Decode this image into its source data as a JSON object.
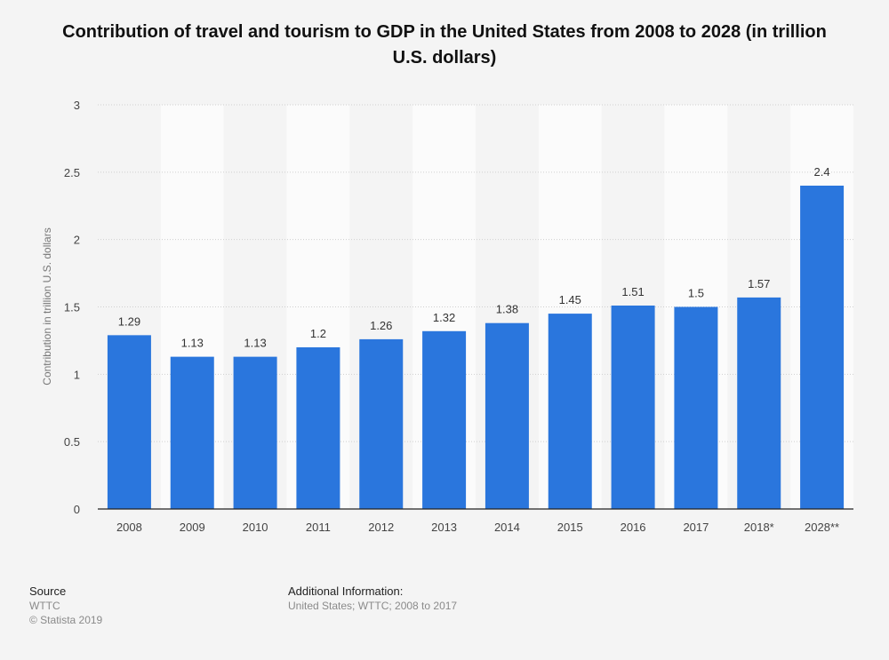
{
  "chart_data": {
    "type": "bar",
    "title": "Contribution of travel and tourism to GDP in the United States from 2008 to 2028 (in trillion U.S. dollars)",
    "ylabel": "Contribution in trillion U.S. dollars",
    "xlabel": "",
    "categories": [
      "2008",
      "2009",
      "2010",
      "2011",
      "2012",
      "2013",
      "2014",
      "2015",
      "2016",
      "2017",
      "2018*",
      "2028**"
    ],
    "values": [
      1.29,
      1.13,
      1.13,
      1.2,
      1.26,
      1.32,
      1.38,
      1.45,
      1.51,
      1.5,
      1.57,
      2.4
    ],
    "value_labels": [
      "1.29",
      "1.13",
      "1.13",
      "1.2",
      "1.26",
      "1.32",
      "1.38",
      "1.45",
      "1.51",
      "1.5",
      "1.57",
      "2.4"
    ],
    "ylim": [
      0,
      3
    ],
    "yticks": [
      "0",
      "0.5",
      "1",
      "1.5",
      "2",
      "2.5",
      "3"
    ],
    "grid": true,
    "bar_color": "#2a76dd"
  },
  "footer": {
    "source_heading": "Source",
    "source_name": "WTTC",
    "copyright": "© Statista 2019",
    "additional_heading": "Additional Information:",
    "additional_text": "United States; WTTC; 2008 to 2017"
  }
}
